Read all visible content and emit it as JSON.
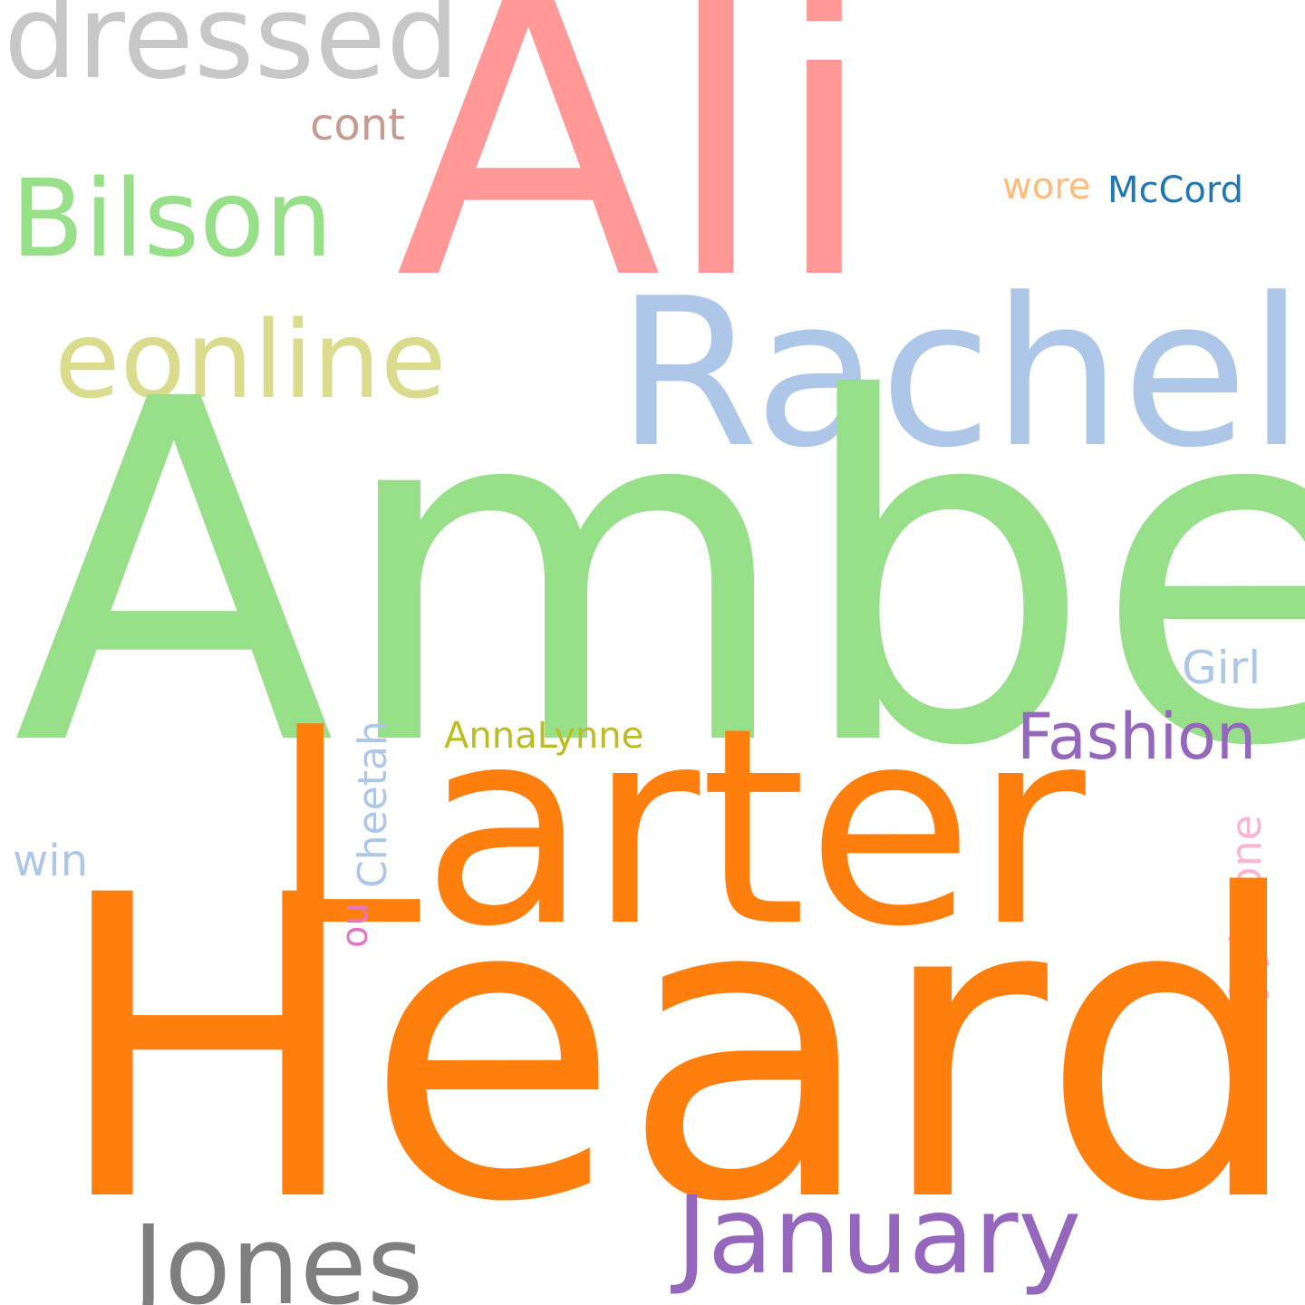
{
  "cloud": {
    "words": [
      {
        "key": "dressed",
        "text": "dressed",
        "color": "#c7c7c7"
      },
      {
        "key": "ali",
        "text": "Ali",
        "color": "#ff9896"
      },
      {
        "key": "cont",
        "text": "cont",
        "color": "#c49c94"
      },
      {
        "key": "bilson",
        "text": "Bilson",
        "color": "#98df8a"
      },
      {
        "key": "wore",
        "text": "wore",
        "color": "#ffbb78"
      },
      {
        "key": "mccord",
        "text": "McCord",
        "color": "#1f77b4"
      },
      {
        "key": "eonline",
        "text": "eonline",
        "color": "#dbdb8d"
      },
      {
        "key": "rachel",
        "text": "Rachel",
        "color": "#aec7e8"
      },
      {
        "key": "amber",
        "text": "Amber",
        "color": "#98df8a"
      },
      {
        "key": "girl",
        "text": "Girl",
        "color": "#aec7e8"
      },
      {
        "key": "annalynne",
        "text": "AnnaLynne",
        "color": "#bcbd22"
      },
      {
        "key": "fashion",
        "text": "Fashion",
        "color": "#9467bd"
      },
      {
        "key": "larter",
        "text": "Larter",
        "color": "#ff7f0e"
      },
      {
        "key": "cheetah",
        "text": "Cheetah",
        "color": "#aec7e8"
      },
      {
        "key": "jtyboone",
        "text": "jtyboone",
        "color": "#f7b6d2"
      },
      {
        "key": "win",
        "text": "win",
        "color": "#aec7e8"
      },
      {
        "key": "ou",
        "text": "ou",
        "color": "#e377c2"
      },
      {
        "key": "heard",
        "text": "Heard",
        "color": "#ff7f0e"
      },
      {
        "key": "january",
        "text": "January",
        "color": "#9467bd"
      },
      {
        "key": "jones",
        "text": "Jones",
        "color": "#7f7f7f"
      }
    ]
  }
}
